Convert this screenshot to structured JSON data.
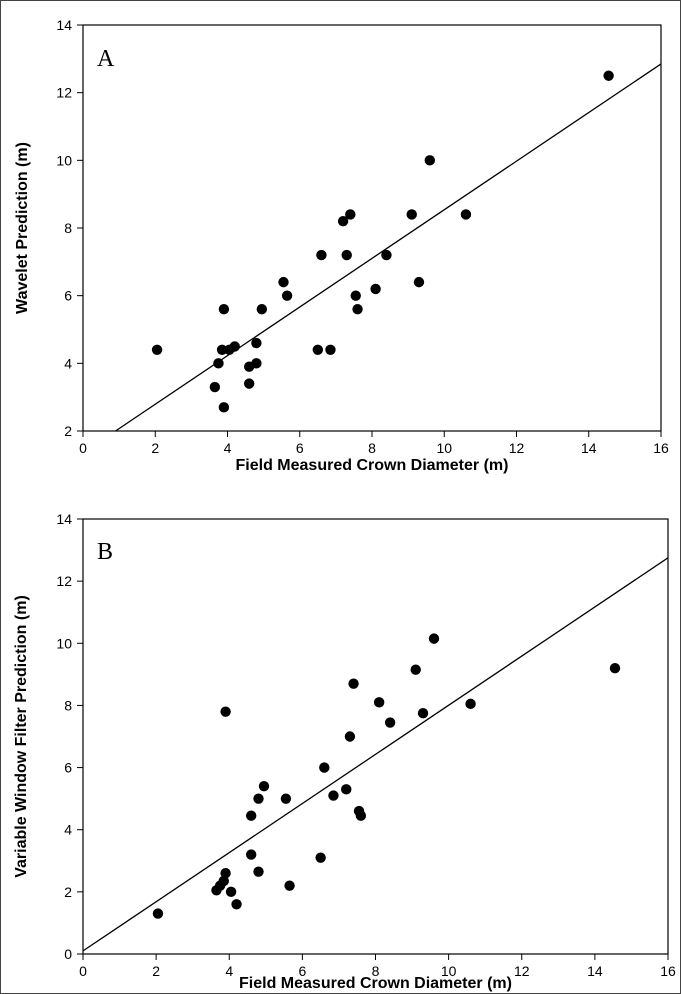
{
  "chart_data": [
    {
      "panel_label": "A",
      "type": "scatter",
      "xlabel": "Field Measured Crown Diameter (m)",
      "ylabel": "Wavelet Prediction (m)",
      "xlim": [
        0,
        16
      ],
      "ylim": [
        2,
        14
      ],
      "xticks": [
        "0",
        "2",
        "4",
        "6",
        "8",
        "10",
        "12",
        "14",
        "16"
      ],
      "yticks": [
        "2",
        "4",
        "6",
        "8",
        "10",
        "12",
        "14"
      ],
      "points": [
        {
          "x": 2.05,
          "y": 4.4
        },
        {
          "x": 3.65,
          "y": 3.3
        },
        {
          "x": 3.75,
          "y": 4.0
        },
        {
          "x": 3.85,
          "y": 4.4
        },
        {
          "x": 3.9,
          "y": 5.6
        },
        {
          "x": 3.9,
          "y": 2.7
        },
        {
          "x": 4.05,
          "y": 4.4
        },
        {
          "x": 4.2,
          "y": 4.5
        },
        {
          "x": 4.6,
          "y": 3.4
        },
        {
          "x": 4.6,
          "y": 3.9
        },
        {
          "x": 4.8,
          "y": 4.0
        },
        {
          "x": 4.8,
          "y": 4.6
        },
        {
          "x": 4.95,
          "y": 5.6
        },
        {
          "x": 5.55,
          "y": 6.4
        },
        {
          "x": 5.65,
          "y": 6.0
        },
        {
          "x": 6.5,
          "y": 4.4
        },
        {
          "x": 6.6,
          "y": 7.2
        },
        {
          "x": 6.85,
          "y": 4.4
        },
        {
          "x": 7.2,
          "y": 8.2
        },
        {
          "x": 7.3,
          "y": 7.2
        },
        {
          "x": 7.4,
          "y": 8.4
        },
        {
          "x": 7.55,
          "y": 6.0
        },
        {
          "x": 7.6,
          "y": 5.6
        },
        {
          "x": 8.1,
          "y": 6.2
        },
        {
          "x": 8.4,
          "y": 7.2
        },
        {
          "x": 9.1,
          "y": 8.4
        },
        {
          "x": 9.3,
          "y": 6.4
        },
        {
          "x": 9.6,
          "y": 10.0
        },
        {
          "x": 10.6,
          "y": 8.4
        },
        {
          "x": 14.55,
          "y": 12.5
        }
      ],
      "fit_line": {
        "x": [
          0.9,
          16
        ],
        "y": [
          2.0,
          12.85
        ]
      }
    },
    {
      "panel_label": "B",
      "type": "scatter",
      "xlabel": "Field Measured Crown Diameter (m)",
      "ylabel": "Variable Window Filter Prediction (m)",
      "xlim": [
        0,
        16
      ],
      "ylim": [
        0,
        14
      ],
      "xticks": [
        "0",
        "2",
        "4",
        "6",
        "8",
        "10",
        "12",
        "14",
        "16"
      ],
      "yticks": [
        "0",
        "2",
        "4",
        "6",
        "8",
        "10",
        "12",
        "14"
      ],
      "points": [
        {
          "x": 2.05,
          "y": 1.3
        },
        {
          "x": 3.65,
          "y": 2.05
        },
        {
          "x": 3.75,
          "y": 2.2
        },
        {
          "x": 3.85,
          "y": 2.35
        },
        {
          "x": 3.9,
          "y": 2.6
        },
        {
          "x": 3.9,
          "y": 7.8
        },
        {
          "x": 4.05,
          "y": 2.0
        },
        {
          "x": 4.2,
          "y": 1.6
        },
        {
          "x": 4.6,
          "y": 4.45
        },
        {
          "x": 4.6,
          "y": 3.2
        },
        {
          "x": 4.8,
          "y": 2.65
        },
        {
          "x": 4.8,
          "y": 5.0
        },
        {
          "x": 4.95,
          "y": 5.4
        },
        {
          "x": 5.55,
          "y": 5.0
        },
        {
          "x": 5.65,
          "y": 2.2
        },
        {
          "x": 6.5,
          "y": 3.1
        },
        {
          "x": 6.6,
          "y": 6.0
        },
        {
          "x": 6.85,
          "y": 5.1
        },
        {
          "x": 7.2,
          "y": 5.3
        },
        {
          "x": 7.3,
          "y": 7.0
        },
        {
          "x": 7.4,
          "y": 8.7
        },
        {
          "x": 7.55,
          "y": 4.6
        },
        {
          "x": 7.6,
          "y": 4.45
        },
        {
          "x": 8.1,
          "y": 8.1
        },
        {
          "x": 8.4,
          "y": 7.45
        },
        {
          "x": 9.1,
          "y": 9.15
        },
        {
          "x": 9.3,
          "y": 7.75
        },
        {
          "x": 9.6,
          "y": 10.15
        },
        {
          "x": 10.6,
          "y": 8.05
        },
        {
          "x": 14.55,
          "y": 9.2
        }
      ],
      "fit_line": {
        "x": [
          0,
          16
        ],
        "y": [
          0.1,
          12.75
        ]
      }
    }
  ]
}
